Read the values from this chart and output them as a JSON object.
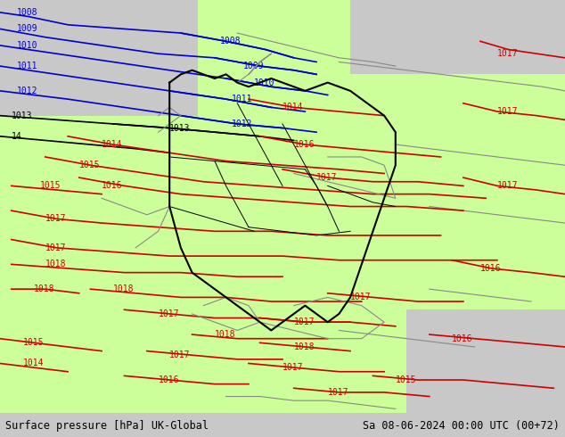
{
  "title_left": "Surface pressure [hPa] UK-Global",
  "title_right": "Sa 08-06-2024 00:00 UTC (00+72)",
  "bg_color_land": "#ccff99",
  "bg_color_sea": "#d0d0d0",
  "bg_color_outer": "#d8d8d8",
  "border_color": "#000000",
  "isobar_color_blue": "#0000cc",
  "isobar_color_red": "#cc0000",
  "isobar_color_black": "#000000",
  "isobar_color_gray": "#888888",
  "font_size_label": 9,
  "font_size_bottom": 8,
  "figsize": [
    6.34,
    4.9
  ],
  "dpi": 100
}
